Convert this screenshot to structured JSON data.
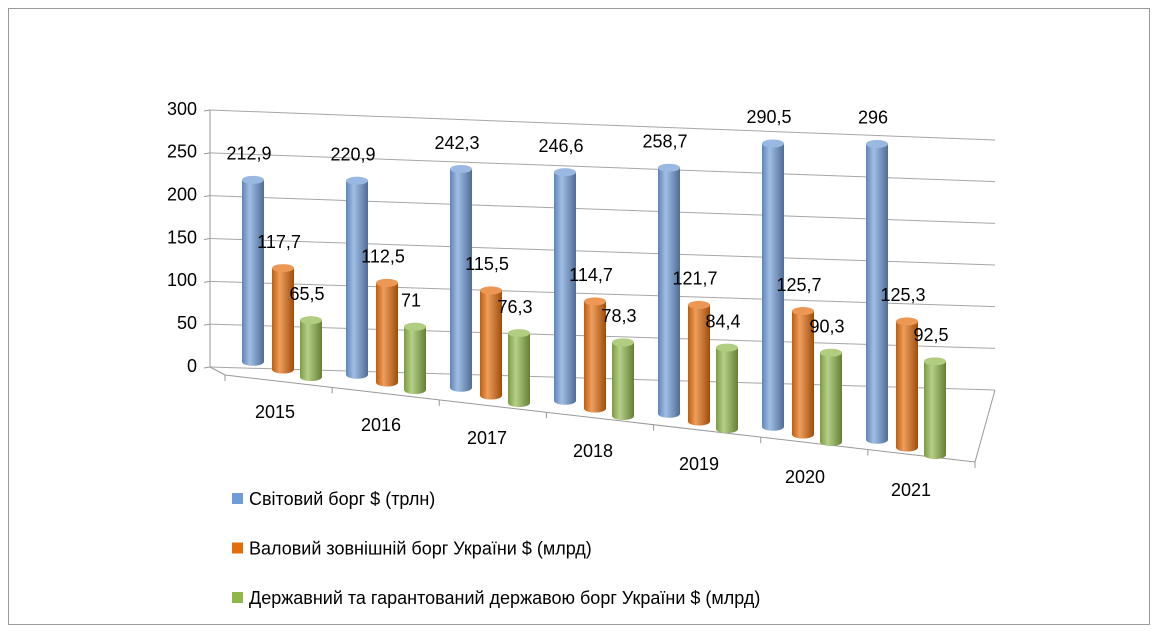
{
  "chart_data": {
    "type": "bar3d",
    "categories": [
      "2015",
      "2016",
      "2017",
      "2018",
      "2019",
      "2020",
      "2021"
    ],
    "series": [
      {
        "name": "Світовий борг $ (трлн)",
        "color": "#6f9bd6",
        "values": [
          212.9,
          220.9,
          242.3,
          246.6,
          258.7,
          290.5,
          296
        ],
        "value_labels": [
          "212,9",
          "220,9",
          "242,3",
          "246,6",
          "258,7",
          "290,5",
          "296"
        ]
      },
      {
        "name": "Валовий зовнішній борг України $ (млрд)",
        "color": "#e46c0a",
        "values": [
          117.7,
          112.5,
          115.5,
          114.7,
          121.7,
          125.7,
          125.3
        ],
        "value_labels": [
          "117,7",
          "112,5",
          "115,5",
          "114,7",
          "121,7",
          "125,7",
          "125,3"
        ]
      },
      {
        "name": "Державний та гарантований державою борг України $ (млрд)",
        "color": "#8fb74a",
        "values": [
          65.5,
          71,
          76.3,
          78.3,
          84.4,
          90.3,
          92.5
        ],
        "value_labels": [
          "65,5",
          "71",
          "76,3",
          "78,3",
          "84,4",
          "90,3",
          "92,5"
        ]
      }
    ],
    "ylim": [
      0,
      300
    ],
    "yticks": [
      0,
      50,
      100,
      150,
      200,
      250,
      300
    ],
    "grid": true,
    "legend": "bottom-left"
  }
}
